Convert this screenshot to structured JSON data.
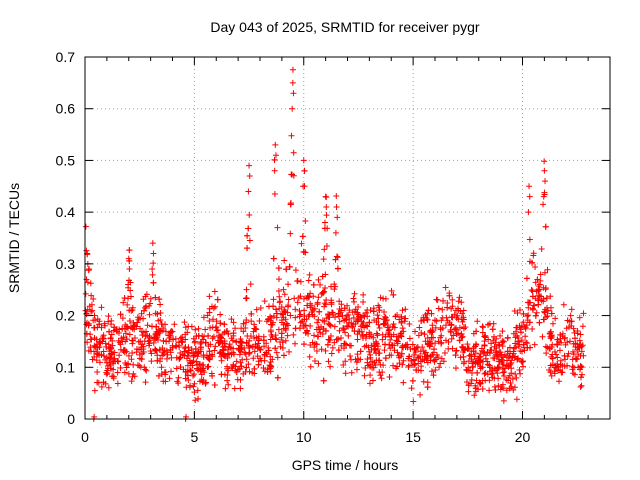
{
  "chart_data": {
    "type": "scatter",
    "title": "Day 043 of 2025, SRMTID for receiver pygr",
    "xlabel": "GPS time / hours",
    "ylabel": "SRMTID / TECUs",
    "xlim": [
      0,
      24
    ],
    "ylim": [
      0,
      0.7
    ],
    "xticks": [
      0,
      5,
      10,
      15,
      20
    ],
    "xtick_labels": [
      "0",
      "5",
      "10",
      "15",
      "20"
    ],
    "yticks": [
      0,
      0.1,
      0.2,
      0.3,
      0.4,
      0.5,
      0.6,
      0.7
    ],
    "ytick_labels": [
      "0",
      "0.1",
      "0.2",
      "0.3",
      "0.4",
      "0.5",
      "0.6",
      "0.7"
    ],
    "grid": true,
    "marker": "+",
    "color": "#ff0000",
    "series": [
      {
        "name": "SRMTID",
        "x_range": [
          0,
          22.8
        ],
        "approx_point_count": 2200,
        "baseline_profile": [
          [
            0.0,
            0.22
          ],
          [
            0.5,
            0.15
          ],
          [
            1.0,
            0.13
          ],
          [
            2.0,
            0.15
          ],
          [
            3.0,
            0.16
          ],
          [
            4.0,
            0.13
          ],
          [
            5.0,
            0.12
          ],
          [
            6.0,
            0.16
          ],
          [
            7.0,
            0.12
          ],
          [
            7.5,
            0.13
          ],
          [
            8.5,
            0.16
          ],
          [
            9.5,
            0.22
          ],
          [
            10.5,
            0.19
          ],
          [
            12.0,
            0.18
          ],
          [
            13.0,
            0.15
          ],
          [
            14.0,
            0.16
          ],
          [
            15.0,
            0.13
          ],
          [
            16.0,
            0.15
          ],
          [
            17.0,
            0.19
          ],
          [
            17.5,
            0.12
          ],
          [
            18.5,
            0.12
          ],
          [
            19.5,
            0.1
          ],
          [
            20.0,
            0.16
          ],
          [
            20.5,
            0.24
          ],
          [
            21.0,
            0.2
          ],
          [
            21.5,
            0.12
          ],
          [
            22.8,
            0.13
          ]
        ],
        "peaks": [
          {
            "x": 0.1,
            "y": 0.32
          },
          {
            "x": 2.0,
            "y": 0.31
          },
          {
            "x": 3.1,
            "y": 0.34
          },
          {
            "x": 7.5,
            "y": 0.49
          },
          {
            "x": 8.7,
            "y": 0.53
          },
          {
            "x": 9.5,
            "y": 0.65
          },
          {
            "x": 10.0,
            "y": 0.5
          },
          {
            "x": 11.0,
            "y": 0.43
          },
          {
            "x": 11.5,
            "y": 0.41
          },
          {
            "x": 20.3,
            "y": 0.45
          },
          {
            "x": 21.0,
            "y": 0.48
          },
          {
            "x": 22.2,
            "y": 0.2
          }
        ],
        "zero_points": [
          {
            "x": 0.4,
            "y": 0.0
          },
          {
            "x": 4.6,
            "y": 0.0
          }
        ]
      }
    ]
  }
}
